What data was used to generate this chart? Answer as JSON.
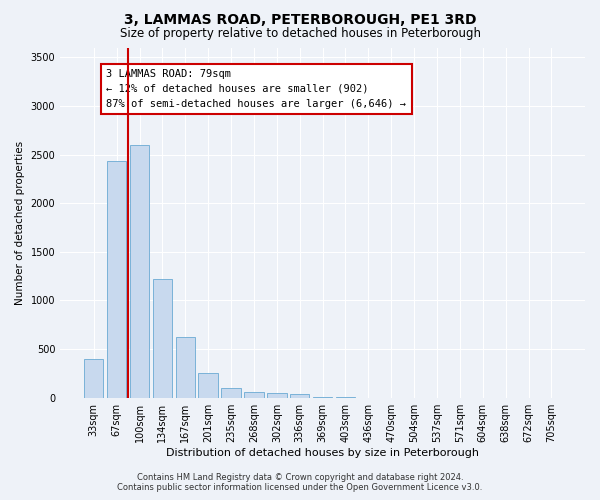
{
  "title": "3, LAMMAS ROAD, PETERBOROUGH, PE1 3RD",
  "subtitle": "Size of property relative to detached houses in Peterborough",
  "xlabel": "Distribution of detached houses by size in Peterborough",
  "ylabel": "Number of detached properties",
  "categories": [
    "33sqm",
    "67sqm",
    "100sqm",
    "134sqm",
    "167sqm",
    "201sqm",
    "235sqm",
    "268sqm",
    "302sqm",
    "336sqm",
    "369sqm",
    "403sqm",
    "436sqm",
    "470sqm",
    "504sqm",
    "537sqm",
    "571sqm",
    "604sqm",
    "638sqm",
    "672sqm",
    "705sqm"
  ],
  "values": [
    400,
    2430,
    2600,
    1220,
    620,
    250,
    100,
    60,
    50,
    40,
    10,
    5,
    2,
    1,
    1,
    0,
    0,
    0,
    0,
    0,
    0
  ],
  "bar_color": "#c8d9ee",
  "bar_edge_color": "#6aaad4",
  "property_line_x": 1.5,
  "property_line_color": "#cc0000",
  "ylim": [
    0,
    3600
  ],
  "yticks": [
    0,
    500,
    1000,
    1500,
    2000,
    2500,
    3000,
    3500
  ],
  "annotation_text": "3 LAMMAS ROAD: 79sqm\n← 12% of detached houses are smaller (902)\n87% of semi-detached houses are larger (6,646) →",
  "annotation_box_facecolor": "#ffffff",
  "annotation_box_edgecolor": "#cc0000",
  "footer_line1": "Contains HM Land Registry data © Crown copyright and database right 2024.",
  "footer_line2": "Contains public sector information licensed under the Open Government Licence v3.0.",
  "background_color": "#eef2f8",
  "plot_bg_color": "#eef2f8",
  "grid_color": "#ffffff",
  "title_fontsize": 10,
  "subtitle_fontsize": 8.5,
  "xlabel_fontsize": 8,
  "ylabel_fontsize": 7.5,
  "tick_fontsize": 7,
  "annotation_fontsize": 7.5,
  "footer_fontsize": 6
}
